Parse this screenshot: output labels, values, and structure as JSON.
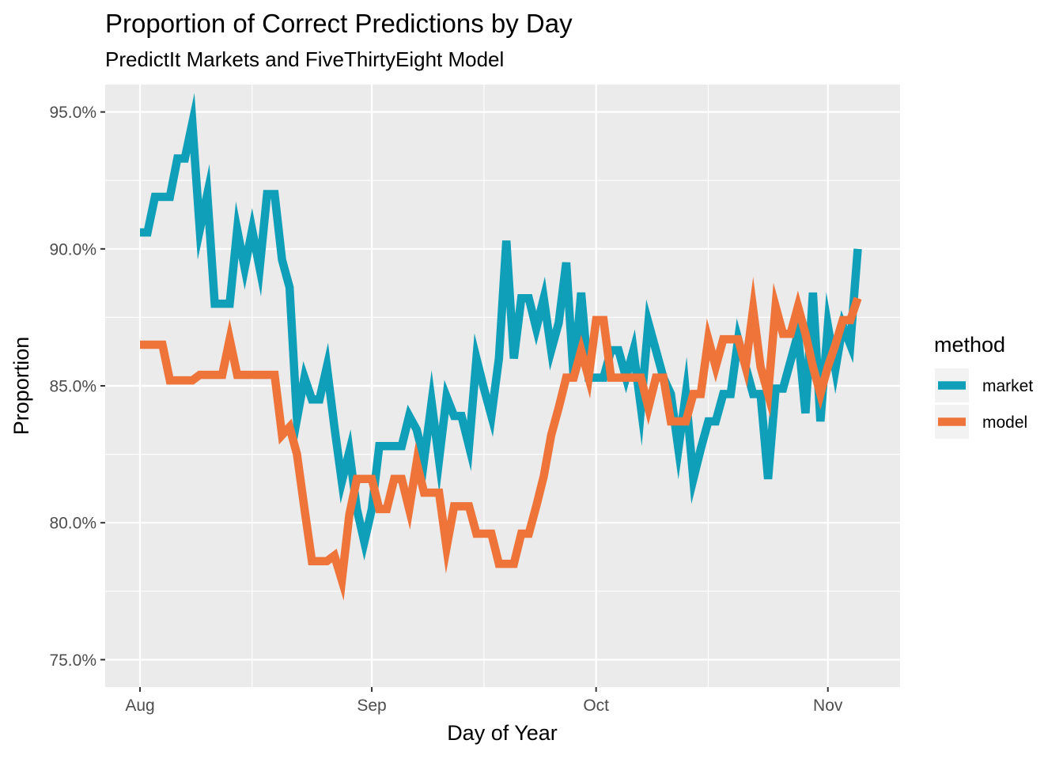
{
  "chart_data": {
    "type": "line",
    "title": "Proportion of Correct Predictions by Day",
    "subtitle": "PredictIt Markets and FiveThirtyEight Model",
    "xlabel": "Day of Year",
    "ylabel": "Proportion",
    "x_range": [
      "2018-08-01",
      "2018-11-06"
    ],
    "x_ticks": [
      {
        "date": "2018-08-01",
        "label": "Aug"
      },
      {
        "date": "2018-09-01",
        "label": "Sep"
      },
      {
        "date": "2018-10-01",
        "label": "Oct"
      },
      {
        "date": "2018-11-01",
        "label": "Nov"
      }
    ],
    "x_minor_ticks": [
      "2018-08-16",
      "2018-09-16",
      "2018-10-16"
    ],
    "ylim": [
      0.74,
      0.96
    ],
    "y_ticks": [
      {
        "value": 0.75,
        "label": "75.0%"
      },
      {
        "value": 0.8,
        "label": "80.0%"
      },
      {
        "value": 0.85,
        "label": "85.0%"
      },
      {
        "value": 0.9,
        "label": "90.0%"
      },
      {
        "value": 0.95,
        "label": "95.0%"
      }
    ],
    "y_minor_ticks": [
      0.775,
      0.825,
      0.875,
      0.925
    ],
    "grid": true,
    "legend": {
      "title": "method",
      "position": "right"
    },
    "series": [
      {
        "name": "market",
        "color": "#0f9fb8",
        "x": [
          "2018-08-01",
          "2018-08-02",
          "2018-08-03",
          "2018-08-04",
          "2018-08-05",
          "2018-08-06",
          "2018-08-07",
          "2018-08-08",
          "2018-08-09",
          "2018-08-10",
          "2018-08-11",
          "2018-08-12",
          "2018-08-13",
          "2018-08-14",
          "2018-08-15",
          "2018-08-16",
          "2018-08-17",
          "2018-08-18",
          "2018-08-19",
          "2018-08-20",
          "2018-08-21",
          "2018-08-22",
          "2018-08-23",
          "2018-08-24",
          "2018-08-25",
          "2018-08-26",
          "2018-08-27",
          "2018-08-28",
          "2018-08-29",
          "2018-08-30",
          "2018-08-31",
          "2018-09-01",
          "2018-09-02",
          "2018-09-03",
          "2018-09-04",
          "2018-09-05",
          "2018-09-06",
          "2018-09-07",
          "2018-09-08",
          "2018-09-09",
          "2018-09-10",
          "2018-09-11",
          "2018-09-12",
          "2018-09-13",
          "2018-09-14",
          "2018-09-15",
          "2018-09-16",
          "2018-09-17",
          "2018-09-18",
          "2018-09-19",
          "2018-09-20",
          "2018-09-21",
          "2018-09-22",
          "2018-09-23",
          "2018-09-24",
          "2018-09-25",
          "2018-09-26",
          "2018-09-27",
          "2018-09-28",
          "2018-09-29",
          "2018-09-30",
          "2018-10-01",
          "2018-10-02",
          "2018-10-03",
          "2018-10-04",
          "2018-10-05",
          "2018-10-06",
          "2018-10-07",
          "2018-10-08",
          "2018-10-09",
          "2018-10-10",
          "2018-10-11",
          "2018-10-12",
          "2018-10-13",
          "2018-10-14",
          "2018-10-15",
          "2018-10-16",
          "2018-10-17",
          "2018-10-18",
          "2018-10-19",
          "2018-10-20",
          "2018-10-21",
          "2018-10-22",
          "2018-10-23",
          "2018-10-24",
          "2018-10-25",
          "2018-10-26",
          "2018-10-27",
          "2018-10-28",
          "2018-10-29",
          "2018-10-30",
          "2018-10-31",
          "2018-11-01",
          "2018-11-02",
          "2018-11-03",
          "2018-11-04",
          "2018-11-05"
        ],
        "values": [
          0.906,
          0.906,
          0.919,
          0.919,
          0.919,
          0.933,
          0.933,
          0.946,
          0.907,
          0.92,
          0.88,
          0.88,
          0.88,
          0.907,
          0.893,
          0.907,
          0.893,
          0.92,
          0.92,
          0.896,
          0.886,
          0.838,
          0.853,
          0.845,
          0.845,
          0.857,
          0.835,
          0.815,
          0.826,
          0.805,
          0.793,
          0.805,
          0.828,
          0.828,
          0.828,
          0.828,
          0.839,
          0.834,
          0.823,
          0.844,
          0.823,
          0.846,
          0.839,
          0.839,
          0.828,
          0.86,
          0.849,
          0.839,
          0.86,
          0.903,
          0.86,
          0.882,
          0.882,
          0.871,
          0.882,
          0.863,
          0.873,
          0.895,
          0.853,
          0.884,
          0.853,
          0.853,
          0.853,
          0.863,
          0.863,
          0.853,
          0.863,
          0.842,
          0.873,
          0.863,
          0.853,
          0.847,
          0.827,
          0.847,
          0.816,
          0.827,
          0.837,
          0.837,
          0.847,
          0.847,
          0.867,
          0.857,
          0.847,
          0.847,
          0.816,
          0.849,
          0.849,
          0.859,
          0.869,
          0.84,
          0.884,
          0.837,
          0.872,
          0.856,
          0.872,
          0.865,
          0.9
        ]
      },
      {
        "name": "model",
        "color": "#ee743a",
        "x": [
          "2018-08-01",
          "2018-08-02",
          "2018-08-03",
          "2018-08-04",
          "2018-08-05",
          "2018-08-06",
          "2018-08-07",
          "2018-08-08",
          "2018-08-09",
          "2018-08-10",
          "2018-08-11",
          "2018-08-12",
          "2018-08-13",
          "2018-08-14",
          "2018-08-15",
          "2018-08-16",
          "2018-08-17",
          "2018-08-18",
          "2018-08-19",
          "2018-08-20",
          "2018-08-21",
          "2018-08-22",
          "2018-08-23",
          "2018-08-24",
          "2018-08-25",
          "2018-08-26",
          "2018-08-27",
          "2018-08-28",
          "2018-08-29",
          "2018-08-30",
          "2018-08-31",
          "2018-09-01",
          "2018-09-02",
          "2018-09-03",
          "2018-09-04",
          "2018-09-05",
          "2018-09-06",
          "2018-09-07",
          "2018-09-08",
          "2018-09-09",
          "2018-09-10",
          "2018-09-11",
          "2018-09-12",
          "2018-09-13",
          "2018-09-14",
          "2018-09-15",
          "2018-09-16",
          "2018-09-17",
          "2018-09-18",
          "2018-09-19",
          "2018-09-20",
          "2018-09-21",
          "2018-09-22",
          "2018-09-23",
          "2018-09-24",
          "2018-09-25",
          "2018-09-26",
          "2018-09-27",
          "2018-09-28",
          "2018-09-29",
          "2018-09-30",
          "2018-10-01",
          "2018-10-02",
          "2018-10-03",
          "2018-10-04",
          "2018-10-05",
          "2018-10-06",
          "2018-10-07",
          "2018-10-08",
          "2018-10-09",
          "2018-10-10",
          "2018-10-11",
          "2018-10-12",
          "2018-10-13",
          "2018-10-14",
          "2018-10-15",
          "2018-10-16",
          "2018-10-17",
          "2018-10-18",
          "2018-10-19",
          "2018-10-20",
          "2018-10-21",
          "2018-10-22",
          "2018-10-23",
          "2018-10-24",
          "2018-10-25",
          "2018-10-26",
          "2018-10-27",
          "2018-10-28",
          "2018-10-29",
          "2018-10-30",
          "2018-10-31",
          "2018-11-01",
          "2018-11-02",
          "2018-11-03",
          "2018-11-04",
          "2018-11-05"
        ],
        "values": [
          0.865,
          0.865,
          0.865,
          0.865,
          0.852,
          0.852,
          0.852,
          0.852,
          0.854,
          0.854,
          0.854,
          0.854,
          0.867,
          0.854,
          0.854,
          0.854,
          0.854,
          0.854,
          0.854,
          0.832,
          0.835,
          0.825,
          0.805,
          0.786,
          0.786,
          0.786,
          0.788,
          0.779,
          0.803,
          0.816,
          0.816,
          0.816,
          0.805,
          0.805,
          0.816,
          0.816,
          0.805,
          0.822,
          0.811,
          0.811,
          0.811,
          0.791,
          0.806,
          0.806,
          0.806,
          0.796,
          0.796,
          0.796,
          0.785,
          0.785,
          0.785,
          0.796,
          0.796,
          0.806,
          0.817,
          0.832,
          0.842,
          0.853,
          0.853,
          0.863,
          0.853,
          0.874,
          0.874,
          0.853,
          0.853,
          0.853,
          0.853,
          0.853,
          0.842,
          0.853,
          0.853,
          0.837,
          0.837,
          0.837,
          0.847,
          0.847,
          0.867,
          0.857,
          0.867,
          0.867,
          0.867,
          0.857,
          0.878,
          0.857,
          0.847,
          0.879,
          0.869,
          0.869,
          0.879,
          0.869,
          0.857,
          0.847,
          0.857,
          0.865,
          0.874,
          0.874,
          0.882
        ]
      }
    ]
  }
}
